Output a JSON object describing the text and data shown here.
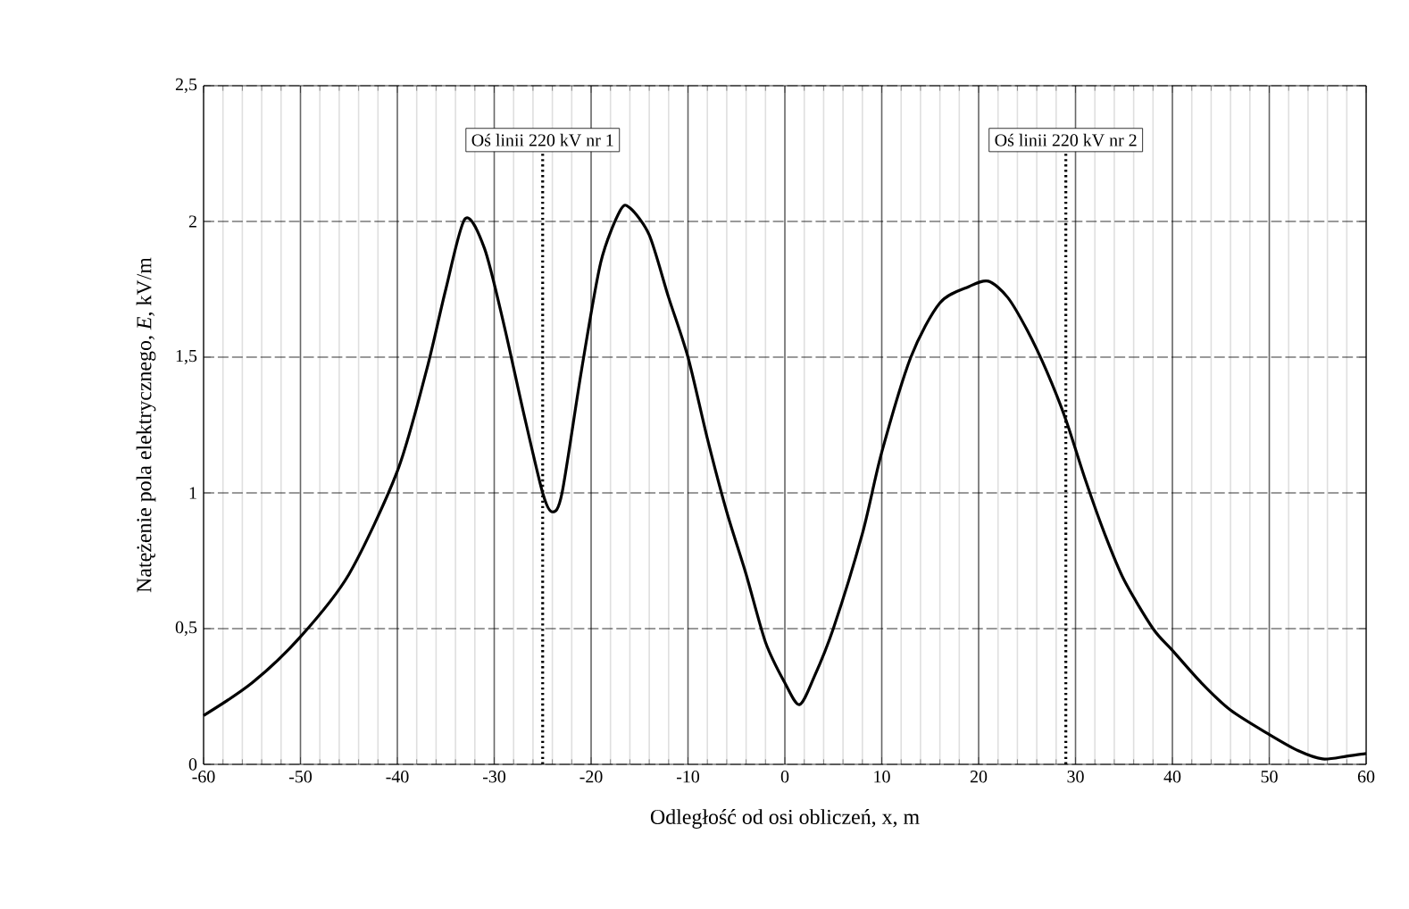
{
  "chart_data": {
    "type": "line",
    "xlabel": "Odległość od osi obliczeń, x, m",
    "ylabel": "Natężenie  pola elektrycznego,  *E*, kV/m",
    "x": [
      -60,
      -55,
      -50,
      -45,
      -40,
      -37,
      -35,
      -33,
      -31,
      -29,
      -27,
      -25,
      -24,
      -23,
      -21,
      -19,
      -17,
      -16,
      -14,
      -12,
      -10,
      -8,
      -6,
      -4,
      -2,
      0,
      1.5,
      3,
      5,
      8,
      10,
      13,
      16,
      19,
      21,
      23,
      25,
      27,
      29,
      31,
      33,
      35,
      38,
      40,
      43,
      46,
      50,
      53,
      55.5,
      58,
      60
    ],
    "series": [
      {
        "color": "#000000",
        "values": [
          0.18,
          0.3,
          0.47,
          0.7,
          1.08,
          1.45,
          1.75,
          2.01,
          1.9,
          1.62,
          1.3,
          1.0,
          0.93,
          1.0,
          1.45,
          1.85,
          2.04,
          2.05,
          1.95,
          1.72,
          1.5,
          1.2,
          0.93,
          0.7,
          0.45,
          0.3,
          0.22,
          0.32,
          0.5,
          0.85,
          1.15,
          1.5,
          1.7,
          1.76,
          1.78,
          1.72,
          1.6,
          1.45,
          1.27,
          1.05,
          0.85,
          0.68,
          0.5,
          0.42,
          0.3,
          0.2,
          0.11,
          0.05,
          0.02,
          0.03,
          0.04
        ]
      }
    ],
    "xlim": [
      -60,
      60
    ],
    "xticks": [
      -60,
      -50,
      -40,
      -30,
      -20,
      -10,
      0,
      10,
      20,
      30,
      40,
      50,
      60
    ],
    "ylim": [
      0,
      2.5
    ],
    "yticks": [
      {
        "value": 0,
        "label": "0"
      },
      {
        "value": 0.5,
        "label": "0,5"
      },
      {
        "value": 1,
        "label": "1"
      },
      {
        "value": 1.5,
        "label": "1,5"
      },
      {
        "value": 2,
        "label": "2"
      },
      {
        "value": 2.5,
        "label": "2,5"
      }
    ],
    "ref_lines": [
      {
        "axis": "x",
        "value": -25,
        "label": "Oś linii 220 kV nr 1",
        "color": "#000000",
        "line_style": "dotted"
      },
      {
        "axis": "x",
        "value": 29,
        "label": "Oś linii 220 kV nr 2",
        "color": "#000000",
        "line_style": "dotted"
      }
    ],
    "grid": true,
    "marker": "none",
    "line_style": "solid"
  }
}
